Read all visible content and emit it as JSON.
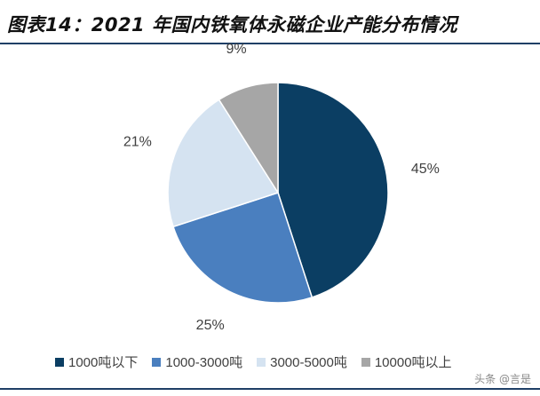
{
  "title": "图表14：2021 年国内铁氧体永磁企业产能分布情况",
  "watermark": "头条 @言是",
  "chart_data": {
    "type": "pie",
    "start_angle_deg": 0,
    "direction": "clockwise",
    "slices": [
      {
        "name": "1000吨以下",
        "value": 45,
        "label": "45%",
        "color": "#0b3e63"
      },
      {
        "name": "1000-3000吨",
        "value": 25,
        "label": "25%",
        "color": "#4a7fbf"
      },
      {
        "name": "3000-5000吨",
        "value": 21,
        "label": "21%",
        "color": "#d5e3f1"
      },
      {
        "name": "10000吨以上",
        "value": 9,
        "label": "9%",
        "color": "#a6a6a6"
      }
    ],
    "legend": {
      "placement": "bottom"
    }
  }
}
